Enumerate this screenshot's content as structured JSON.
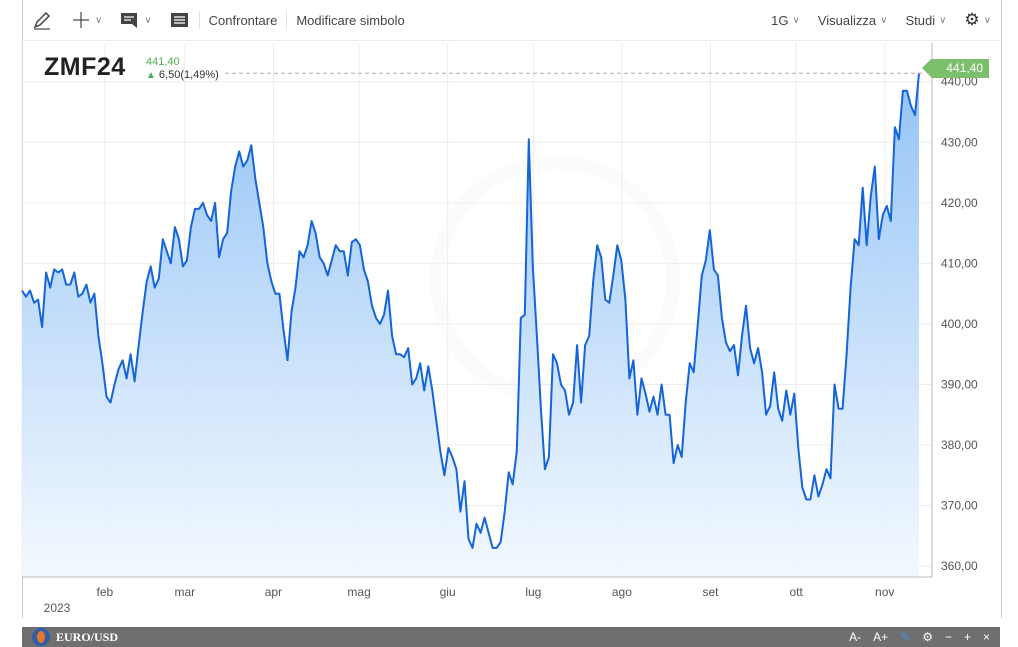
{
  "toolbar": {
    "compare_label": "Confrontare",
    "modify_symbol_label": "Modificare simbolo",
    "interval_label": "1G",
    "view_label": "Visualizza",
    "studies_label": "Studi"
  },
  "symbol": {
    "ticker": "ZMF24",
    "last_price": "441,40",
    "change": "6,50(1,49%)",
    "price_tag": "441,40"
  },
  "bottom_bar": {
    "title": "EURO/USD",
    "font_smaller": "A-",
    "font_larger": "A+",
    "minimize": "−",
    "add": "+",
    "close": "×"
  },
  "colors": {
    "line": "#1565d8",
    "area_top": "#8ec0f5",
    "area_bottom": "#f2f8ff",
    "price_tag": "#7bbf6a",
    "up": "#4caf50"
  },
  "chart_data": {
    "type": "area",
    "series": [
      {
        "values": [
          405.5,
          404.5,
          405.5,
          403.5,
          404,
          399.5,
          408.5,
          406,
          409,
          408.5,
          409,
          406.5,
          406.5,
          408.5,
          404.5,
          405,
          406.5,
          403.5,
          405,
          398,
          393.5,
          388,
          387,
          390,
          392.5,
          394,
          391,
          395,
          390.5,
          396.5,
          402,
          407,
          409.5,
          406,
          407.5,
          414,
          412,
          410,
          416,
          414,
          409.5,
          410.5,
          416,
          419,
          419,
          420,
          418,
          417,
          420,
          411,
          414,
          415,
          422,
          426,
          428.5,
          426,
          427,
          429.5,
          424,
          420,
          416,
          410,
          407,
          405,
          405,
          399,
          394,
          402,
          406,
          412,
          411,
          413,
          417,
          415,
          411,
          410,
          408,
          410.5,
          413,
          412,
          412,
          408,
          413.5,
          414,
          413,
          409,
          407,
          403,
          401,
          400,
          401.5,
          405.5,
          398,
          395,
          395,
          394.5,
          396,
          390,
          391,
          393.5,
          389,
          393,
          389,
          384,
          379,
          375,
          379.5,
          378,
          376,
          369,
          374,
          364.5,
          363,
          367,
          365.5,
          368,
          365.5,
          363,
          363,
          364,
          369,
          375.5,
          373.5,
          379,
          401,
          401.5,
          430.5,
          409.5,
          398,
          386,
          376,
          378,
          395,
          393.5,
          390,
          389,
          385,
          387,
          396.5,
          387,
          396.5,
          398,
          407,
          413,
          411,
          404,
          403.5,
          408,
          413,
          410.5,
          404,
          391,
          394,
          385,
          391,
          388.5,
          385.5,
          388,
          385,
          390,
          385,
          385,
          377,
          380,
          378,
          387,
          393.5,
          392,
          400,
          408,
          410.5,
          415.5,
          409,
          408,
          401,
          397,
          395.5,
          396.5,
          391.5,
          398,
          403,
          396,
          393.5,
          396,
          392,
          385,
          386.5,
          392,
          386,
          384,
          389,
          385,
          388.5,
          379.5,
          373,
          371,
          371,
          375,
          371.5,
          373.5,
          376,
          374.5,
          390,
          386,
          386,
          395,
          406,
          414,
          413,
          422.5,
          413,
          421,
          426,
          414,
          418,
          419.5,
          417,
          432.5,
          430.5,
          438.5,
          438.5,
          436,
          434.5,
          441.4
        ]
      }
    ],
    "x_tick_labels": [
      "feb",
      "mar",
      "apr",
      "mag",
      "giu",
      "lug",
      "ago",
      "set",
      "ott",
      "nov"
    ],
    "year_label": "2023",
    "y_tick_labels": [
      "360,00",
      "370,00",
      "380,00",
      "390,00",
      "400,00",
      "410,00",
      "420,00",
      "430,00",
      "440,00"
    ],
    "y_ticks": [
      360,
      370,
      380,
      390,
      400,
      410,
      420,
      430,
      440
    ],
    "ylim": [
      358.2,
      446.4
    ],
    "x_start": "2023-01-03",
    "x_end": "2023-11-13",
    "grid": true
  }
}
